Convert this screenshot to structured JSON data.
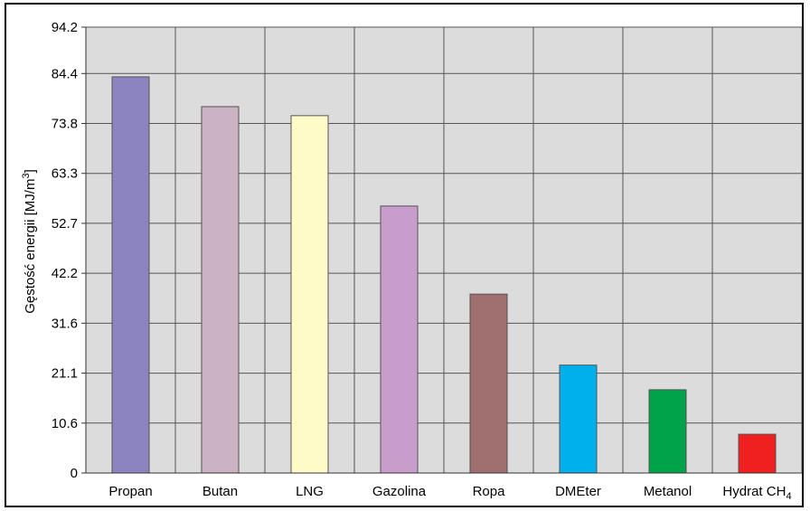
{
  "chart_data": {
    "type": "bar",
    "title": "",
    "xlabel": "",
    "ylabel": "Gęstość energii [MJ/m",
    "ylabel_superscript": "3",
    "ylabel_suffix": "]",
    "categories": [
      "Propan",
      "Butan",
      "LNG",
      "Gazolina",
      "Ropa",
      "DMEter",
      "Metanol",
      "Hydrat CH"
    ],
    "category_subscripts": [
      "",
      "",
      "",
      "",
      "",
      "",
      "",
      "4"
    ],
    "values": [
      83.7,
      77.4,
      75.5,
      56.4,
      37.8,
      22.8,
      17.6,
      8.2
    ],
    "colors": [
      "#8b84c0",
      "#cbb3c3",
      "#fffbc8",
      "#c89ccb",
      "#a07070",
      "#00b0ec",
      "#00a34a",
      "#ee2020"
    ],
    "yticks": [
      "0",
      "10.6",
      "21.1",
      "31.6",
      "42.2",
      "52.7",
      "63.3",
      "73.8",
      "84.4",
      "94.2"
    ],
    "ytick_values": [
      0,
      10.55,
      21.1,
      31.65,
      42.2,
      52.75,
      63.3,
      73.85,
      84.4,
      94.2
    ],
    "ylim": [
      0,
      94.2
    ],
    "grid": true,
    "plot_background": "#dcdcdc",
    "grid_color": "#555555"
  }
}
